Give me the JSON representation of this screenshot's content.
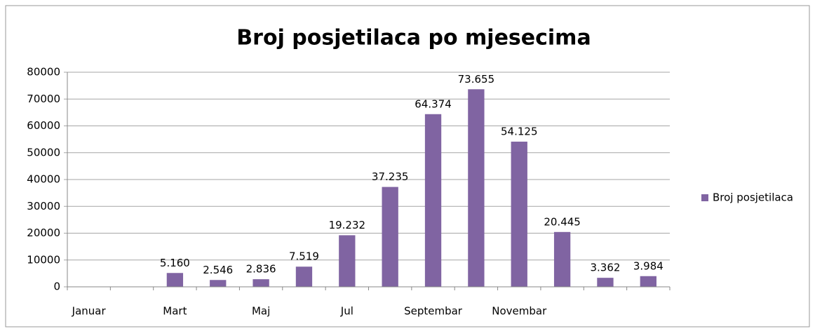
{
  "chart_data": {
    "type": "bar",
    "title": "Broj posjetilaca po mjesecima",
    "categories": [
      "Januar",
      null,
      "Mart",
      null,
      "Maj",
      null,
      "Jul",
      null,
      "Septembar",
      null,
      "Novembar",
      null,
      null,
      null
    ],
    "series": [
      {
        "name": "Broj posjetilaca",
        "color": "#8064a2",
        "values": [
          null,
          null,
          5160,
          2546,
          2836,
          7519,
          19232,
          37235,
          64374,
          73655,
          54125,
          20445,
          3362,
          3984
        ],
        "value_labels": [
          null,
          null,
          "5.160",
          "2.546",
          "2.836",
          "7.519",
          "19.232",
          "37.235",
          "64.374",
          "73.655",
          "54.125",
          "20.445",
          "3.362",
          "3.984"
        ]
      }
    ],
    "ylim": [
      0,
      80000
    ],
    "yticks": [
      0,
      10000,
      20000,
      30000,
      40000,
      50000,
      60000,
      70000,
      80000
    ],
    "grid": true,
    "legend": "right"
  }
}
